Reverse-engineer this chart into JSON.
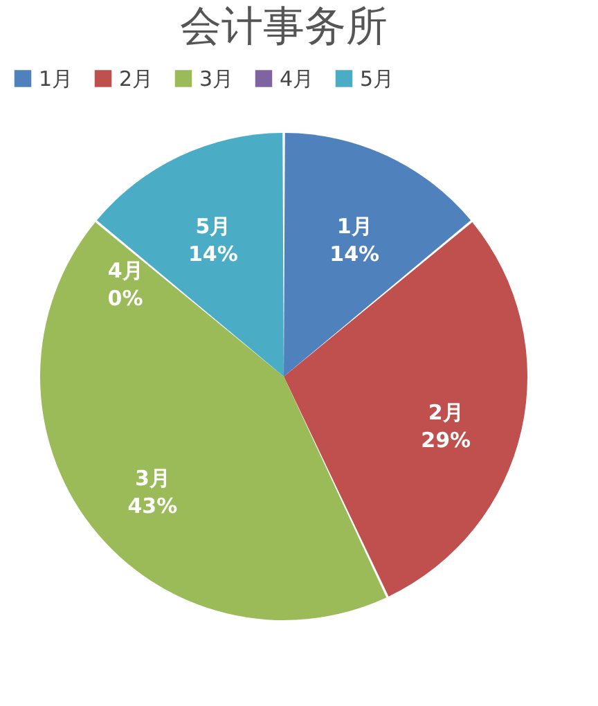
{
  "chart_data": {
    "type": "pie",
    "title": "会计事务所",
    "categories": [
      "1月",
      "2月",
      "3月",
      "4月",
      "5月"
    ],
    "values": [
      14,
      29,
      43,
      0,
      14
    ],
    "colors": [
      "#4f81bd",
      "#c0504d",
      "#9bbb59",
      "#8064a2",
      "#4bacc6"
    ],
    "value_labels": [
      "14%",
      "29%",
      "43%",
      "0%",
      "14%"
    ],
    "legend": "top"
  }
}
